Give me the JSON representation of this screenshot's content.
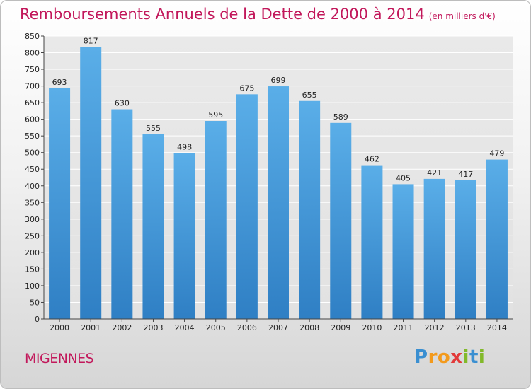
{
  "chart_data": {
    "type": "bar",
    "title": "Remboursements Annuels de la Dette de 2000 à 2014",
    "unit_note": "(en milliers d'€)",
    "categories": [
      "2000",
      "2001",
      "2002",
      "2003",
      "2004",
      "2005",
      "2006",
      "2007",
      "2008",
      "2009",
      "2010",
      "2011",
      "2012",
      "2013",
      "2014"
    ],
    "values": [
      693,
      817,
      630,
      555,
      498,
      595,
      675,
      699,
      655,
      589,
      462,
      405,
      421,
      417,
      479
    ],
    "ylim": [
      0,
      850
    ],
    "yticks": [
      0,
      50,
      100,
      150,
      200,
      250,
      300,
      350,
      400,
      450,
      500,
      550,
      600,
      650,
      700,
      750,
      800,
      850
    ],
    "xlabel": "",
    "ylabel": "",
    "grid": true,
    "bar_color": "#4da1e0"
  },
  "footer": {
    "commune": "MIGENNES",
    "logo": {
      "p": "P",
      "r": "r",
      "o": "o",
      "x": "x",
      "i": "i",
      "t": "t",
      "i2": "i"
    }
  }
}
